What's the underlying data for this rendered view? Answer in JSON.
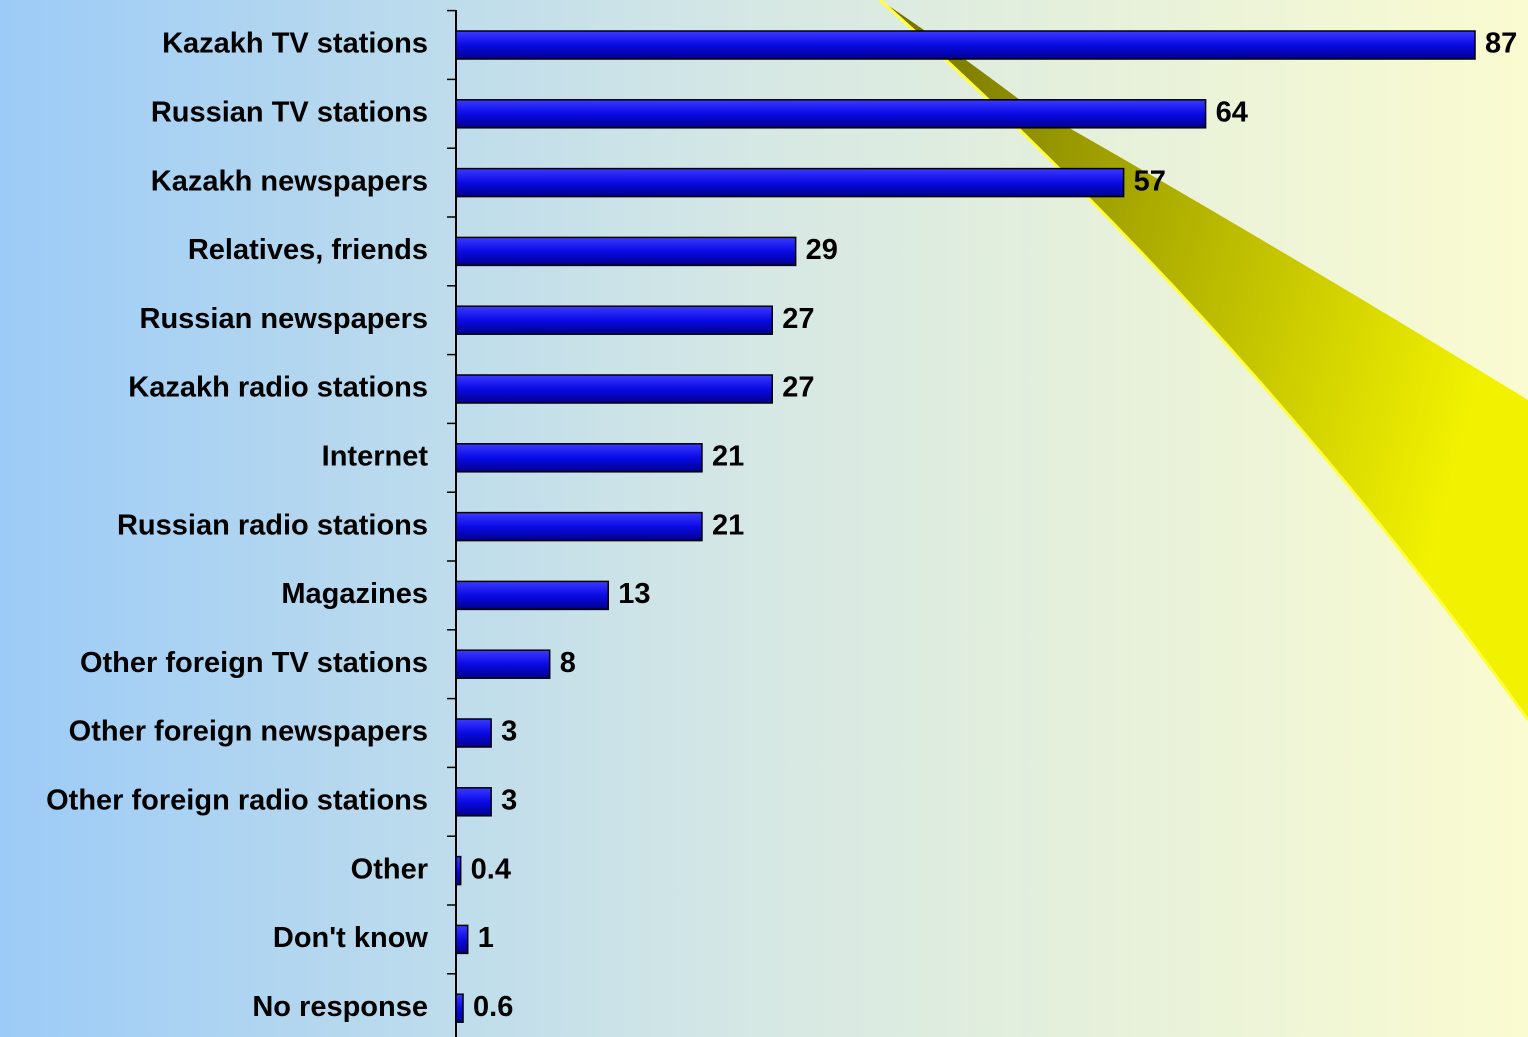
{
  "chart_data": {
    "type": "bar",
    "orientation": "horizontal",
    "color": "#0a0ae6",
    "categories": [
      "Kazakh TV stations",
      "Russian TV stations",
      "Kazakh newspapers",
      "Relatives, friends",
      "Russian newspapers",
      "Kazakh radio stations",
      "Internet",
      "Russian radio stations",
      "Magazines",
      "Other foreign TV stations",
      "Other foreign newspapers",
      "Other foreign radio stations",
      "Other",
      "Don't know",
      "No response"
    ],
    "values": [
      87,
      64,
      57,
      29,
      27,
      27,
      21,
      21,
      13,
      8,
      3,
      3,
      0.4,
      1,
      0.6
    ]
  }
}
